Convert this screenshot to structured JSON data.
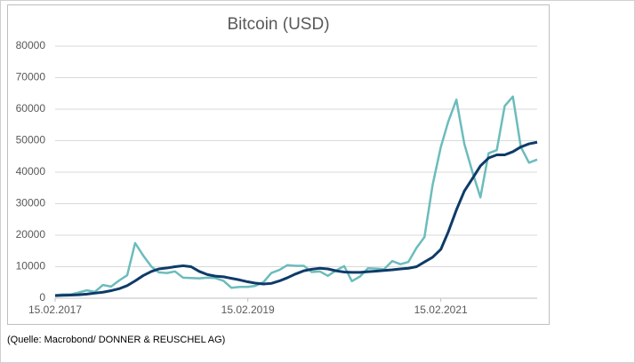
{
  "chart_data": {
    "type": "line",
    "title": "Bitcoin (USD)",
    "note": "(Quelle: Macrobond/ DONNER & REUSCHEL AG)",
    "x": [
      "2017-02-15",
      "2017-03-15",
      "2017-04-15",
      "2017-05-15",
      "2017-06-15",
      "2017-07-15",
      "2017-08-15",
      "2017-09-15",
      "2017-10-15",
      "2017-11-15",
      "2017-12-15",
      "2018-01-15",
      "2018-02-15",
      "2018-03-15",
      "2018-04-15",
      "2018-05-15",
      "2018-06-15",
      "2018-07-15",
      "2018-08-15",
      "2018-09-15",
      "2018-10-15",
      "2018-11-15",
      "2018-12-15",
      "2019-01-15",
      "2019-02-15",
      "2019-03-15",
      "2019-04-15",
      "2019-05-15",
      "2019-06-15",
      "2019-07-15",
      "2019-08-15",
      "2019-09-15",
      "2019-10-15",
      "2019-11-15",
      "2019-12-15",
      "2020-01-15",
      "2020-02-15",
      "2020-03-15",
      "2020-04-15",
      "2020-05-15",
      "2020-06-15",
      "2020-07-15",
      "2020-08-15",
      "2020-09-15",
      "2020-10-15",
      "2020-11-15",
      "2020-12-15",
      "2021-01-15",
      "2021-02-15",
      "2021-03-15",
      "2021-04-15",
      "2021-05-15",
      "2021-06-15",
      "2021-07-15",
      "2021-08-15",
      "2021-09-15",
      "2021-10-15",
      "2021-11-15",
      "2021-12-15",
      "2022-01-15",
      "2022-02-15"
    ],
    "series": [
      {
        "color": "#6cbcbc",
        "values": [
          1000,
          1200,
          1200,
          1800,
          2500,
          2000,
          4200,
          3700,
          5600,
          7300,
          17500,
          13500,
          10000,
          8200,
          8000,
          8500,
          6500,
          6400,
          6300,
          6500,
          6400,
          5500,
          3300,
          3600,
          3600,
          3900,
          5100,
          8000,
          9000,
          10500,
          10300,
          10300,
          8300,
          8500,
          7100,
          8800,
          10200,
          5400,
          6900,
          9500,
          9400,
          9200,
          11800,
          10800,
          11500,
          16000,
          19400,
          36000,
          48000,
          56000,
          63000,
          49000,
          40000,
          32000,
          46000,
          47000,
          61000,
          64000,
          48000,
          43000,
          44000
        ]
      },
      {
        "color": "#0e3b69",
        "values": [
          800,
          900,
          1000,
          1100,
          1300,
          1600,
          1900,
          2400,
          3000,
          4000,
          5500,
          7200,
          8500,
          9300,
          9600,
          10000,
          10300,
          10000,
          8500,
          7500,
          7000,
          6800,
          6300,
          5800,
          5200,
          4800,
          4500,
          4700,
          5500,
          6500,
          7700,
          8700,
          9200,
          9500,
          9300,
          8700,
          8300,
          8200,
          8200,
          8400,
          8600,
          8800,
          9000,
          9300,
          9500,
          10000,
          11500,
          13000,
          15500,
          21000,
          28000,
          34000,
          38000,
          42000,
          44500,
          45500,
          45500,
          46500,
          48000,
          49000,
          49500
        ]
      }
    ],
    "xlim": [
      "2017-02-15",
      "2022-02-15"
    ],
    "xticks": [
      {
        "value": "2017-02-15",
        "label": "15.02.2017"
      },
      {
        "value": "2019-02-15",
        "label": "15.02.2019"
      },
      {
        "value": "2021-02-15",
        "label": "15.02.2021"
      }
    ],
    "ylim": [
      0,
      80000
    ],
    "yticks": [
      0,
      10000,
      20000,
      30000,
      40000,
      50000,
      60000,
      70000,
      80000
    ],
    "grid": true
  }
}
